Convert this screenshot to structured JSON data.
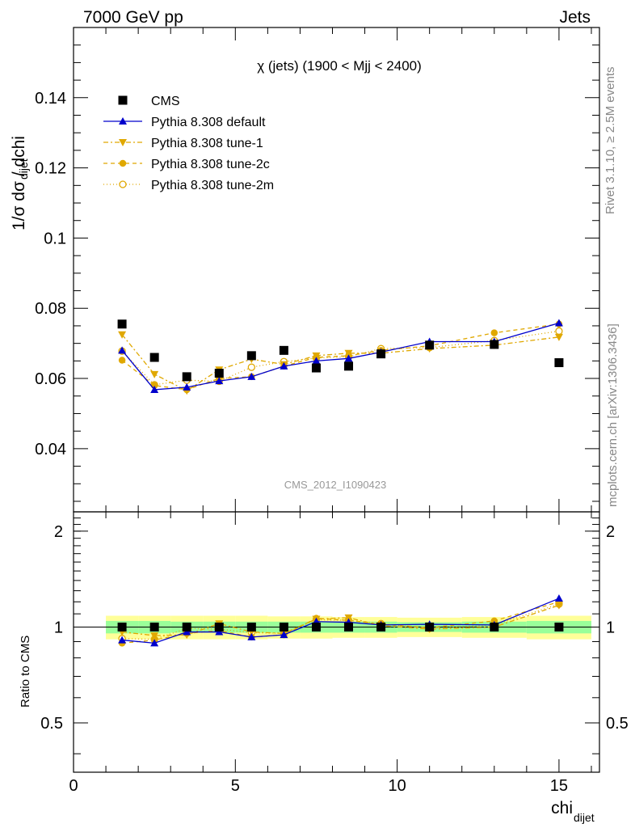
{
  "header": {
    "left": "7000 GeV pp",
    "right": "Jets"
  },
  "side_labels": {
    "rivet": "Rivet 3.1.10, ≥ 2.5M events",
    "mcplots": "mcplots.cern.ch [arXiv:1306.3436]"
  },
  "colors": {
    "cms": "#000000",
    "default": "#0000cc",
    "tunes": "#e0a800",
    "band_inner": "#99ff99",
    "band_outer": "#ffff99"
  },
  "chart_data": {
    "type": "scatter",
    "title": "χ (jets) (1900 < Mjj < 2400)",
    "watermark": "CMS_2012_I1090423",
    "xlabel": "chi",
    "xlabel_sub": "dijet",
    "ylabel": "1/σ dσ / dchi",
    "ylabel_sub": "dijet",
    "ratio_ylabel": "Ratio to CMS",
    "xlim": [
      0,
      16.25
    ],
    "ylim": [
      0.022,
      0.16
    ],
    "ratio_ylim": [
      0.35,
      2.3
    ],
    "x_ticks": [
      "0",
      "5",
      "10",
      "15"
    ],
    "y_ticks": [
      "0.04",
      "0.06",
      "0.08",
      "0.1",
      "0.12",
      "0.14"
    ],
    "ratio_ticks": [
      "0.5",
      "1",
      "2"
    ],
    "legend_position": "top-left",
    "x": [
      1.5,
      2.5,
      3.5,
      4.5,
      5.5,
      6.5,
      7.5,
      8.5,
      9.5,
      11,
      13,
      15
    ],
    "bin_edges": [
      1,
      2,
      3,
      4,
      5,
      6,
      7,
      8,
      9,
      10,
      12,
      14,
      16
    ],
    "band": {
      "inner": [
        0.045,
        0.045,
        0.04,
        0.04,
        0.04,
        0.04,
        0.04,
        0.04,
        0.04,
        0.035,
        0.04,
        0.045
      ],
      "outer": [
        0.085,
        0.085,
        0.085,
        0.085,
        0.085,
        0.08,
        0.08,
        0.075,
        0.075,
        0.07,
        0.075,
        0.085
      ]
    },
    "series": [
      {
        "name": "CMS",
        "marker": "square",
        "values": [
          0.0755,
          0.066,
          0.0605,
          0.0615,
          0.0665,
          0.068,
          0.063,
          0.0635,
          0.067,
          0.0695,
          0.0697,
          0.0645
        ],
        "ratio": [
          1,
          1,
          1,
          1,
          1,
          1,
          1,
          1,
          1,
          1,
          1,
          1
        ]
      },
      {
        "name": "Pythia 8.308 default",
        "marker": "triangle-up",
        "dash": "",
        "values": [
          0.068,
          0.0568,
          0.0575,
          0.0593,
          0.0605,
          0.0635,
          0.065,
          0.0657,
          0.0675,
          0.0705,
          0.0705,
          0.0758
        ],
        "ratio": [
          0.91,
          0.89,
          0.965,
          0.965,
          0.93,
          0.945,
          1.04,
          1.035,
          1.015,
          1.02,
          1.015,
          1.23
        ]
      },
      {
        "name": "Pythia 8.308 tune-1",
        "marker": "triangle-down",
        "dash": "6,3,2,3",
        "values": [
          0.0725,
          0.0612,
          0.0565,
          0.0625,
          0.0655,
          0.064,
          0.0665,
          0.0672,
          0.0672,
          0.0685,
          0.0695,
          0.0718
        ],
        "ratio": [
          0.965,
          0.94,
          0.945,
          1.025,
          0.965,
          0.955,
          1.06,
          1.07,
          1.01,
          0.985,
          1.0,
          1.17
        ]
      },
      {
        "name": "Pythia 8.308 tune-2c",
        "marker": "circle",
        "dash": "5,4",
        "values": [
          0.0652,
          0.058,
          0.0568,
          0.06,
          0.0605,
          0.0635,
          0.066,
          0.0665,
          0.068,
          0.0693,
          0.073,
          0.0755
        ],
        "ratio": [
          0.89,
          0.91,
          0.955,
          0.975,
          0.93,
          0.945,
          1.065,
          1.05,
          1.02,
          0.995,
          1.045,
          1.2
        ]
      },
      {
        "name": "Pythia 8.308 tune-2m",
        "marker": "circle-open",
        "dash": "1,3",
        "values": [
          0.0678,
          0.0582,
          0.0595,
          0.0592,
          0.0632,
          0.0648,
          0.0658,
          0.0662,
          0.0685,
          0.0688,
          0.0708,
          0.0735
        ],
        "ratio": [
          0.92,
          0.915,
          0.99,
          0.985,
          0.96,
          0.955,
          1.055,
          1.05,
          1.025,
          0.99,
          1.015,
          1.18
        ]
      }
    ]
  }
}
